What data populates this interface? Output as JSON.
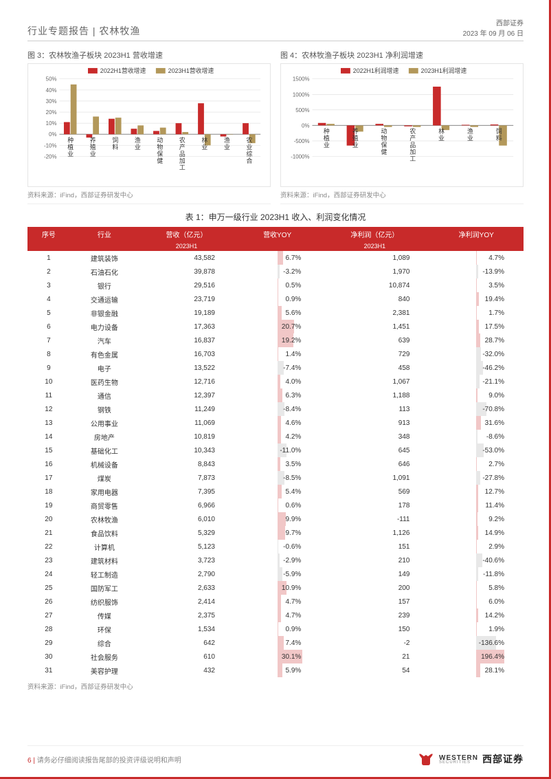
{
  "header": {
    "breadcrumb": "行业专题报告 | 农林牧渔",
    "org": "西部证券",
    "date": "2023 年 09 月 06 日"
  },
  "chart3": {
    "title": "图 3：农林牧渔子板块 2023H1 营收增速",
    "source": "资料来源：iFind，西部证券研发中心",
    "type": "bar",
    "categories": [
      "种植业",
      "养殖业",
      "饲料",
      "渔业",
      "动物保健",
      "农产品加工",
      "林业",
      "渔业",
      "农业综合"
    ],
    "series": [
      {
        "label": "2022H1营收增速",
        "color": "#c82a2a",
        "values": [
          11,
          -3,
          14,
          5,
          3,
          10,
          28,
          -2,
          10
        ]
      },
      {
        "label": "2023H1营收增速",
        "color": "#b3985a",
        "values": [
          45,
          16,
          15,
          8,
          6,
          2,
          -10,
          0,
          -8
        ]
      }
    ],
    "ylim": [
      -20,
      50
    ],
    "ytick_step": 10,
    "grid_color": "#dcdcdc",
    "background": "#ffffff",
    "axis_fontsize": 9,
    "label_fontsize": 9
  },
  "chart4": {
    "title": "图 4：农林牧渔子板块 2023H1 净利润增速",
    "source": "资料来源：iFind，西部证券研发中心",
    "type": "bar",
    "categories": [
      "种植业",
      "养殖业",
      "动物保健",
      "农产品加工",
      "林业",
      "渔业",
      "饲料"
    ],
    "series": [
      {
        "label": "2022H1利润增速",
        "color": "#c82a2a",
        "values": [
          80,
          -650,
          50,
          -30,
          1250,
          20,
          30
        ]
      },
      {
        "label": "2023H1利润增速",
        "color": "#b3985a",
        "values": [
          50,
          -200,
          -50,
          -50,
          -150,
          -50,
          -650
        ]
      }
    ],
    "ylim": [
      -1000,
      1500
    ],
    "ytick_step": 500,
    "grid_color": "#dcdcdc",
    "background": "#ffffff",
    "axis_fontsize": 9,
    "label_fontsize": 9
  },
  "table": {
    "title": "表 1：申万一级行业 2023H1 收入、利润变化情况",
    "source": "资料来源：iFind，西部证券研发中心",
    "columns": [
      "序号",
      "行业",
      "营收（亿元）",
      "营收YOY",
      "净利润（亿元）",
      "净利润YOY"
    ],
    "subheader": [
      "",
      "",
      "2023H1",
      "",
      "2023H1",
      ""
    ],
    "header_bg": "#c82a2a",
    "header_fg": "#ffffff",
    "heat_pos_color": "#e8a2a2",
    "heat_neg_color": "#d9d9d9",
    "yoy_min": -20,
    "yoy_max": 35,
    "profit_yoy_min": -150,
    "profit_yoy_max": 200,
    "rows": [
      {
        "n": 1,
        "ind": "建筑装饰",
        "rev": "43,582",
        "revYoy": 6.7,
        "np": "1,089",
        "npYoy": 4.7
      },
      {
        "n": 2,
        "ind": "石油石化",
        "rev": "39,878",
        "revYoy": -3.2,
        "np": "1,970",
        "npYoy": -13.9
      },
      {
        "n": 3,
        "ind": "银行",
        "rev": "29,516",
        "revYoy": 0.5,
        "np": "10,874",
        "npYoy": 3.5
      },
      {
        "n": 4,
        "ind": "交通运输",
        "rev": "23,719",
        "revYoy": 0.9,
        "np": "840",
        "npYoy": 19.4
      },
      {
        "n": 5,
        "ind": "非银金融",
        "rev": "19,189",
        "revYoy": 5.6,
        "np": "2,381",
        "npYoy": 1.7
      },
      {
        "n": 6,
        "ind": "电力设备",
        "rev": "17,363",
        "revYoy": 20.7,
        "np": "1,451",
        "npYoy": 17.5
      },
      {
        "n": 7,
        "ind": "汽车",
        "rev": "16,837",
        "revYoy": 19.2,
        "np": "639",
        "npYoy": 28.7
      },
      {
        "n": 8,
        "ind": "有色金属",
        "rev": "16,703",
        "revYoy": 1.4,
        "np": "729",
        "npYoy": -32.0
      },
      {
        "n": 9,
        "ind": "电子",
        "rev": "13,522",
        "revYoy": -7.4,
        "np": "458",
        "npYoy": -46.2
      },
      {
        "n": 10,
        "ind": "医药生物",
        "rev": "12,716",
        "revYoy": 4.0,
        "np": "1,067",
        "npYoy": -21.1
      },
      {
        "n": 11,
        "ind": "通信",
        "rev": "12,397",
        "revYoy": 6.3,
        "np": "1,188",
        "npYoy": 9.0
      },
      {
        "n": 12,
        "ind": "钢铁",
        "rev": "11,249",
        "revYoy": -8.4,
        "np": "113",
        "npYoy": -70.8
      },
      {
        "n": 13,
        "ind": "公用事业",
        "rev": "11,069",
        "revYoy": 4.6,
        "np": "913",
        "npYoy": 31.6
      },
      {
        "n": 14,
        "ind": "房地产",
        "rev": "10,819",
        "revYoy": 4.2,
        "np": "348",
        "npYoy": -8.6
      },
      {
        "n": 15,
        "ind": "基础化工",
        "rev": "10,343",
        "revYoy": -11.0,
        "np": "645",
        "npYoy": -53.0
      },
      {
        "n": 16,
        "ind": "机械设备",
        "rev": "8,843",
        "revYoy": 3.5,
        "np": "646",
        "npYoy": 2.7
      },
      {
        "n": 17,
        "ind": "煤炭",
        "rev": "7,873",
        "revYoy": -8.5,
        "np": "1,091",
        "npYoy": -27.8
      },
      {
        "n": 18,
        "ind": "家用电器",
        "rev": "7,395",
        "revYoy": 5.4,
        "np": "569",
        "npYoy": 12.7
      },
      {
        "n": 19,
        "ind": "商贸零售",
        "rev": "6,966",
        "revYoy": 0.6,
        "np": "178",
        "npYoy": 11.4
      },
      {
        "n": 20,
        "ind": "农林牧渔",
        "rev": "6,010",
        "revYoy": 9.9,
        "np": "-111",
        "npYoy": 9.2
      },
      {
        "n": 21,
        "ind": "食品饮料",
        "rev": "5,329",
        "revYoy": 9.7,
        "np": "1,126",
        "npYoy": 14.9
      },
      {
        "n": 22,
        "ind": "计算机",
        "rev": "5,123",
        "revYoy": -0.6,
        "np": "151",
        "npYoy": 2.9
      },
      {
        "n": 23,
        "ind": "建筑材料",
        "rev": "3,723",
        "revYoy": -2.9,
        "np": "210",
        "npYoy": -40.6
      },
      {
        "n": 24,
        "ind": "轻工制造",
        "rev": "2,790",
        "revYoy": -5.9,
        "np": "149",
        "npYoy": -11.8
      },
      {
        "n": 25,
        "ind": "国防军工",
        "rev": "2,633",
        "revYoy": 10.9,
        "np": "200",
        "npYoy": 5.8
      },
      {
        "n": 26,
        "ind": "纺织服饰",
        "rev": "2,414",
        "revYoy": 4.7,
        "np": "157",
        "npYoy": 6.0
      },
      {
        "n": 27,
        "ind": "传媒",
        "rev": "2,375",
        "revYoy": 4.7,
        "np": "239",
        "npYoy": 14.2
      },
      {
        "n": 28,
        "ind": "环保",
        "rev": "1,534",
        "revYoy": 0.9,
        "np": "150",
        "npYoy": 1.9
      },
      {
        "n": 29,
        "ind": "综合",
        "rev": "642",
        "revYoy": 7.4,
        "np": "-2",
        "npYoy": -136.6
      },
      {
        "n": 30,
        "ind": "社会服务",
        "rev": "610",
        "revYoy": 30.1,
        "np": "21",
        "npYoy": 196.4
      },
      {
        "n": 31,
        "ind": "美容护理",
        "rev": "432",
        "revYoy": 5.9,
        "np": "54",
        "npYoy": 28.1
      }
    ]
  },
  "footer": {
    "page": "6",
    "disclaim": "请务必仔细阅读报告尾部的投资评级说明和声明",
    "brand_en": "WESTERN",
    "brand_sub": "SECURITIES",
    "brand_cn": "西部证券"
  }
}
